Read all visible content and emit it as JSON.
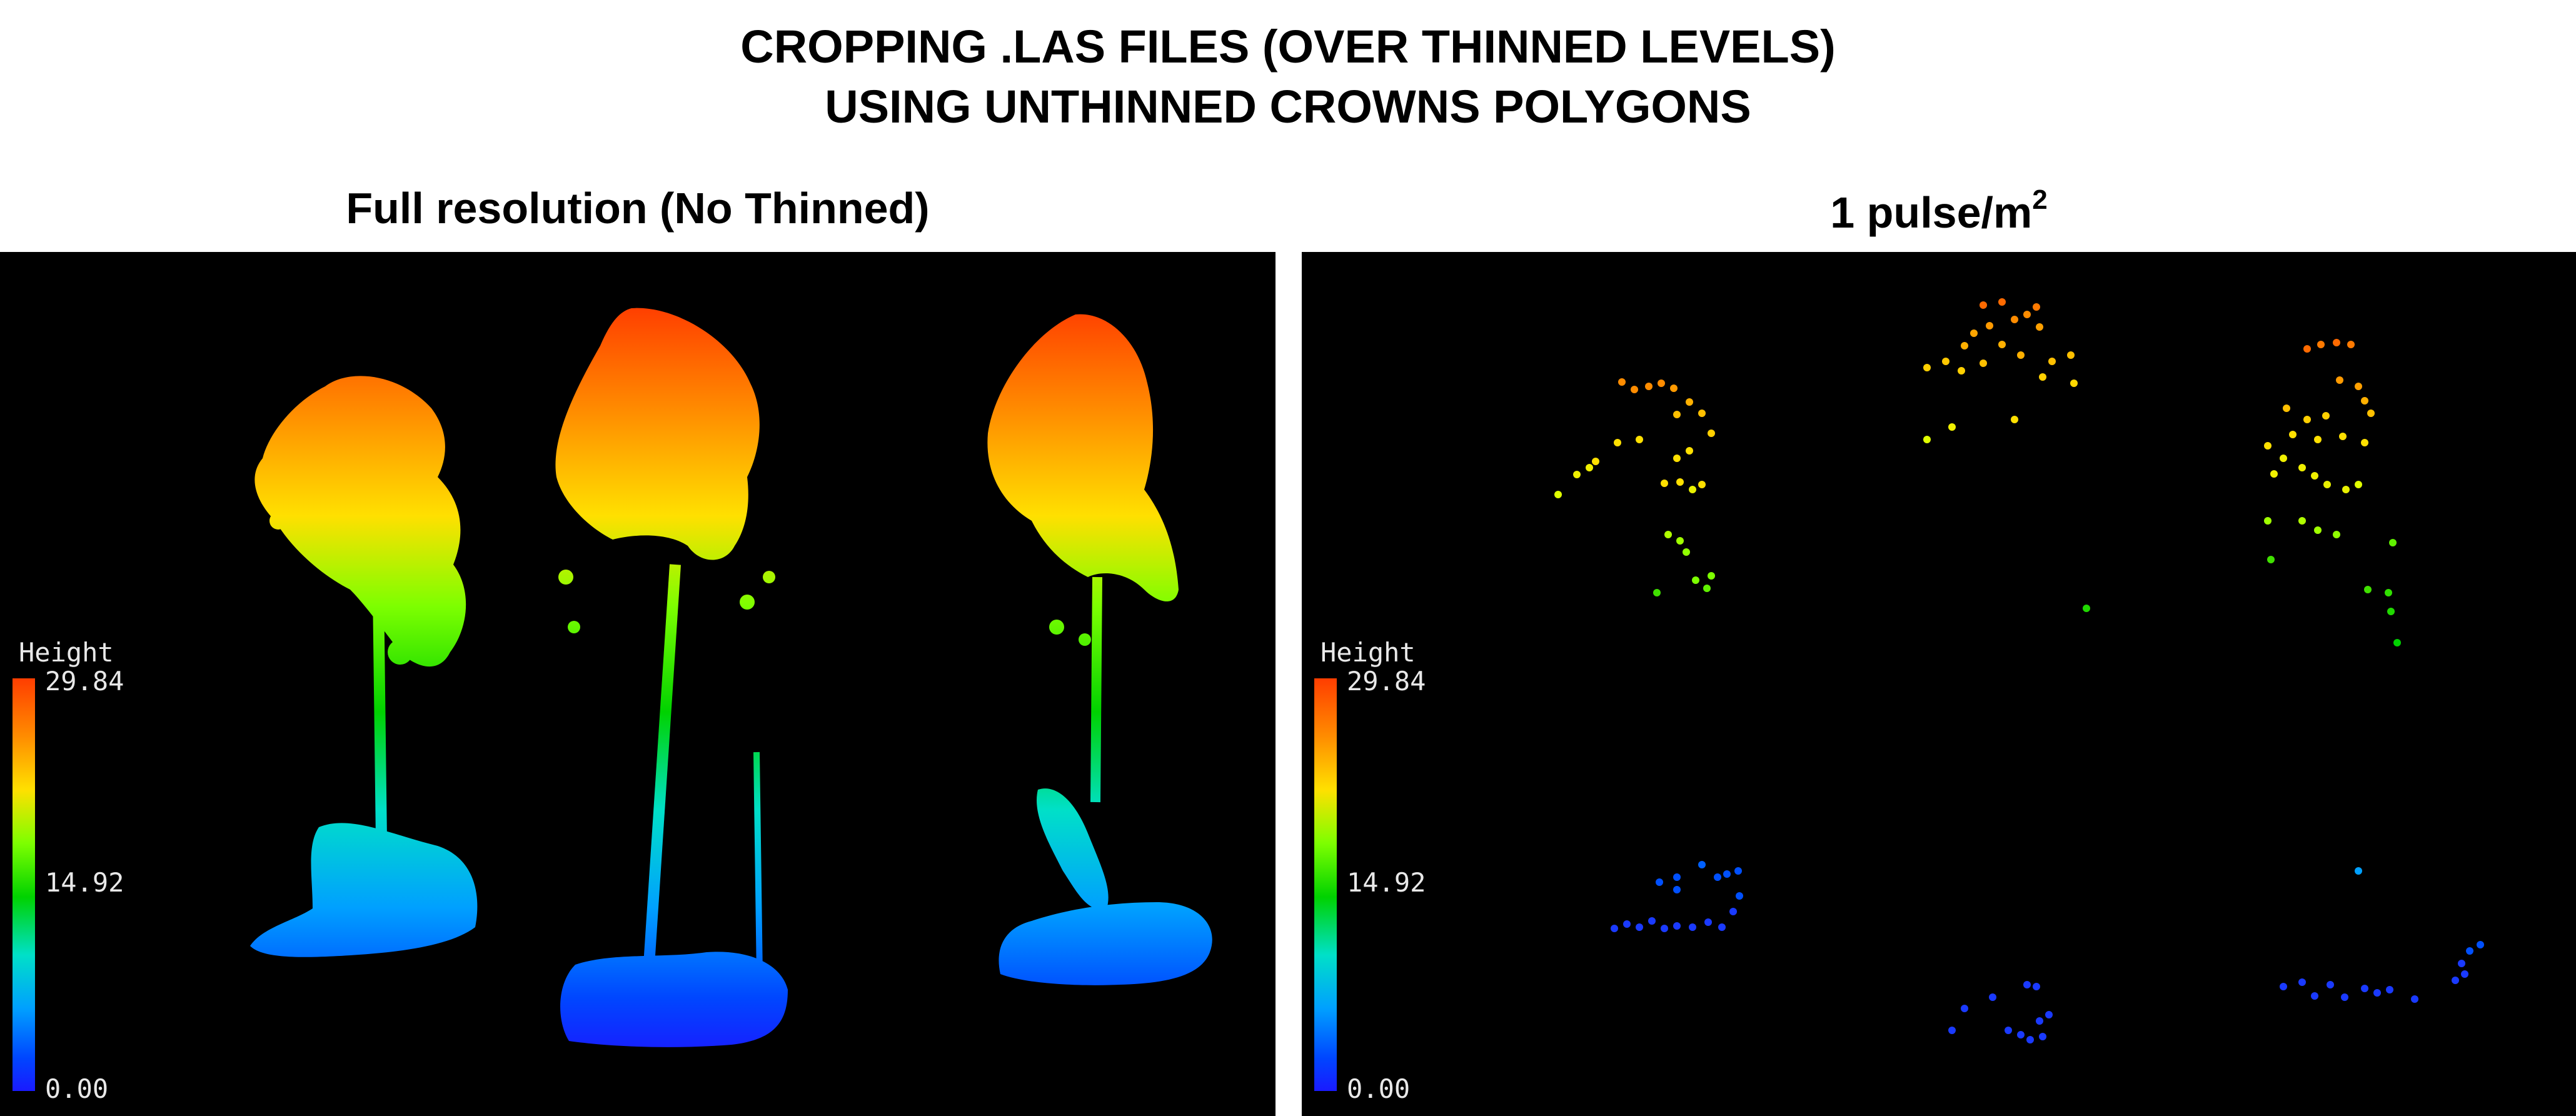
{
  "title": {
    "line1": "CROPPING .LAS FILES (OVER THINNED LEVELS)",
    "line2": "USING UNTHINNED CROWNS POLYGONS"
  },
  "panels": {
    "left": {
      "title": "Full resolution (No Thinned)",
      "legend": {
        "title": "Height",
        "max": "29.84",
        "mid": "14.92",
        "min": "0.00"
      }
    },
    "right": {
      "title_main": "1 pulse/m",
      "title_sup": "2",
      "legend": {
        "title": "Height",
        "max": "29.84",
        "mid": "14.92",
        "min": "0.00"
      }
    }
  },
  "colors": {
    "background": "#000000",
    "height_scale": [
      "#1a1aff",
      "#0046ff",
      "#00a0ff",
      "#00e0c8",
      "#00d200",
      "#7dff00",
      "#ffe000",
      "#ff8c00",
      "#ff3d00"
    ]
  }
}
